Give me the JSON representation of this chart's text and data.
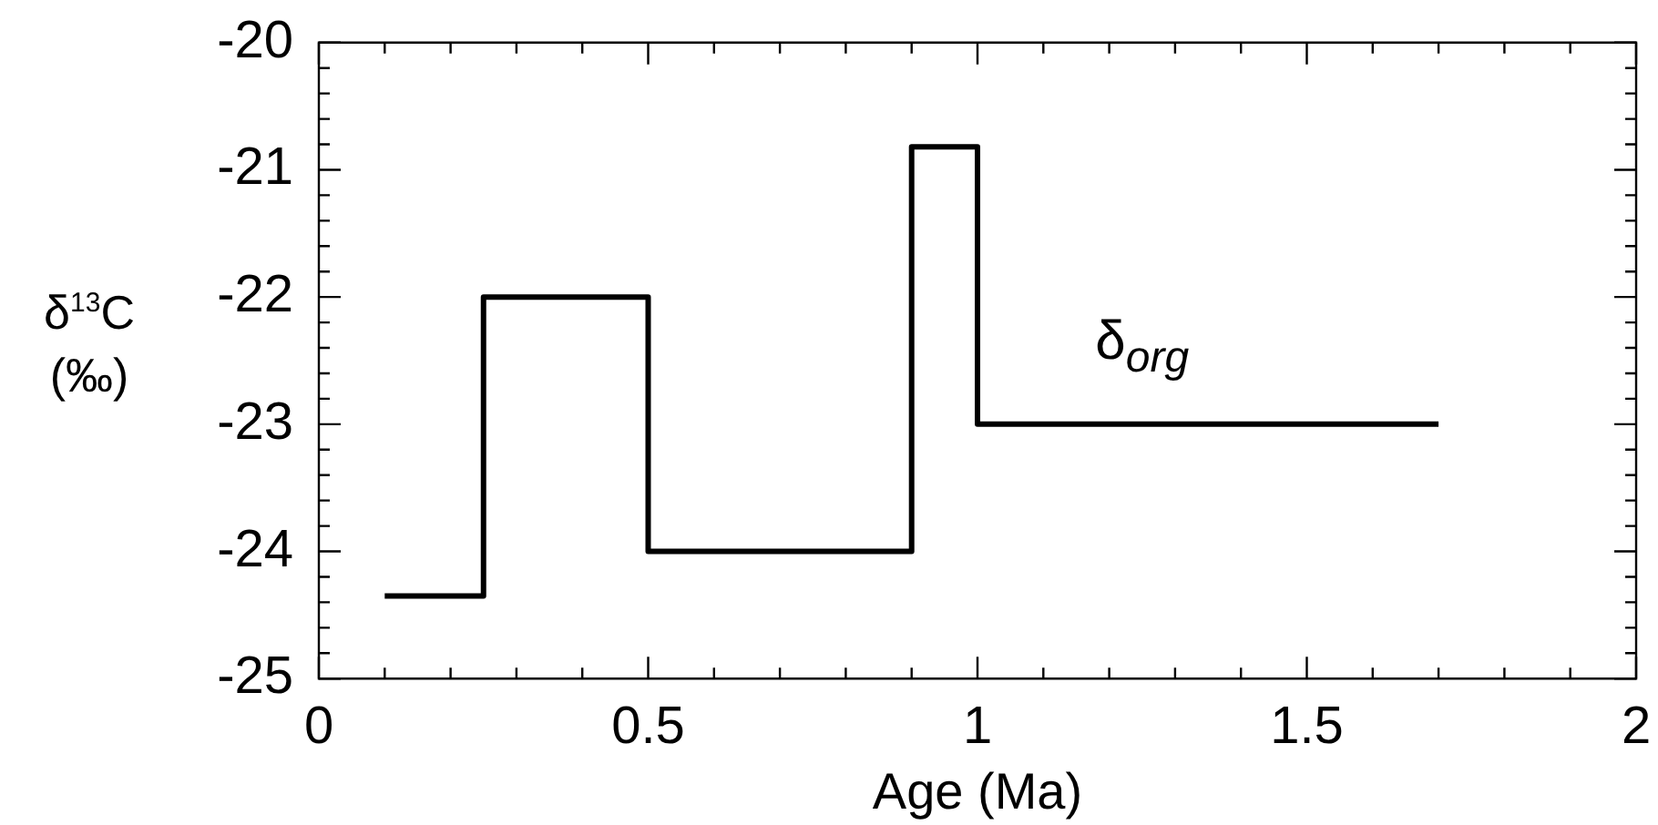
{
  "chart_data": {
    "type": "step",
    "xlabel": "Age (Ma)",
    "ylabel": "δ$^{13}$C\n(‰)",
    "x": [
      0.1,
      0.25,
      0.5,
      0.9,
      1.0,
      1.7
    ],
    "series": [
      {
        "name": "δ$_{org}$",
        "color": "#000000",
        "values": [
          -24.35,
          -22.0,
          -24.0,
          -20.82,
          -23.0,
          -23.0
        ]
      }
    ],
    "xlim": [
      0,
      2
    ],
    "xticks": [
      0,
      {
        "value": 0.1,
        "label": null
      },
      {
        "value": 0.2,
        "label": null
      },
      {
        "value": 0.3,
        "label": null
      },
      {
        "value": 0.4,
        "label": null
      },
      0.5,
      {
        "value": 0.6,
        "label": null
      },
      {
        "value": 0.7,
        "label": null
      },
      {
        "value": 0.8,
        "label": null
      },
      {
        "value": 0.9,
        "label": null
      },
      1,
      {
        "value": 1.1,
        "label": null
      },
      {
        "value": 1.2,
        "label": null
      },
      {
        "value": 1.3,
        "label": null
      },
      {
        "value": 1.4,
        "label": null
      },
      1.5,
      {
        "value": 1.6,
        "label": null
      },
      {
        "value": 1.7,
        "label": null
      },
      {
        "value": 1.8,
        "label": null
      },
      {
        "value": 1.9,
        "label": null
      },
      2
    ],
    "ylim": [
      -25,
      -20
    ],
    "yticks": [
      -25,
      {
        "value": -24.8,
        "label": null
      },
      {
        "value": -24.6,
        "label": null
      },
      {
        "value": -24.4,
        "label": null
      },
      {
        "value": -24.2,
        "label": null
      },
      -24,
      {
        "value": -23.8,
        "label": null
      },
      {
        "value": -23.6,
        "label": null
      },
      {
        "value": -23.4,
        "label": null
      },
      {
        "value": -23.2,
        "label": null
      },
      -23,
      {
        "value": -22.8,
        "label": null
      },
      {
        "value": -22.6,
        "label": null
      },
      {
        "value": -22.4,
        "label": null
      },
      {
        "value": -22.2,
        "label": null
      },
      -22,
      {
        "value": -21.8,
        "label": null
      },
      {
        "value": -21.6,
        "label": null
      },
      {
        "value": -21.4,
        "label": null
      },
      {
        "value": -21.2,
        "label": null
      },
      -21,
      {
        "value": -20.8,
        "label": null
      },
      {
        "value": -20.6,
        "label": null
      },
      {
        "value": -20.4,
        "label": null
      },
      {
        "value": -20.2,
        "label": null
      },
      -20
    ],
    "grid": false,
    "legend": false,
    "marker": "none",
    "line_style": "solid"
  }
}
